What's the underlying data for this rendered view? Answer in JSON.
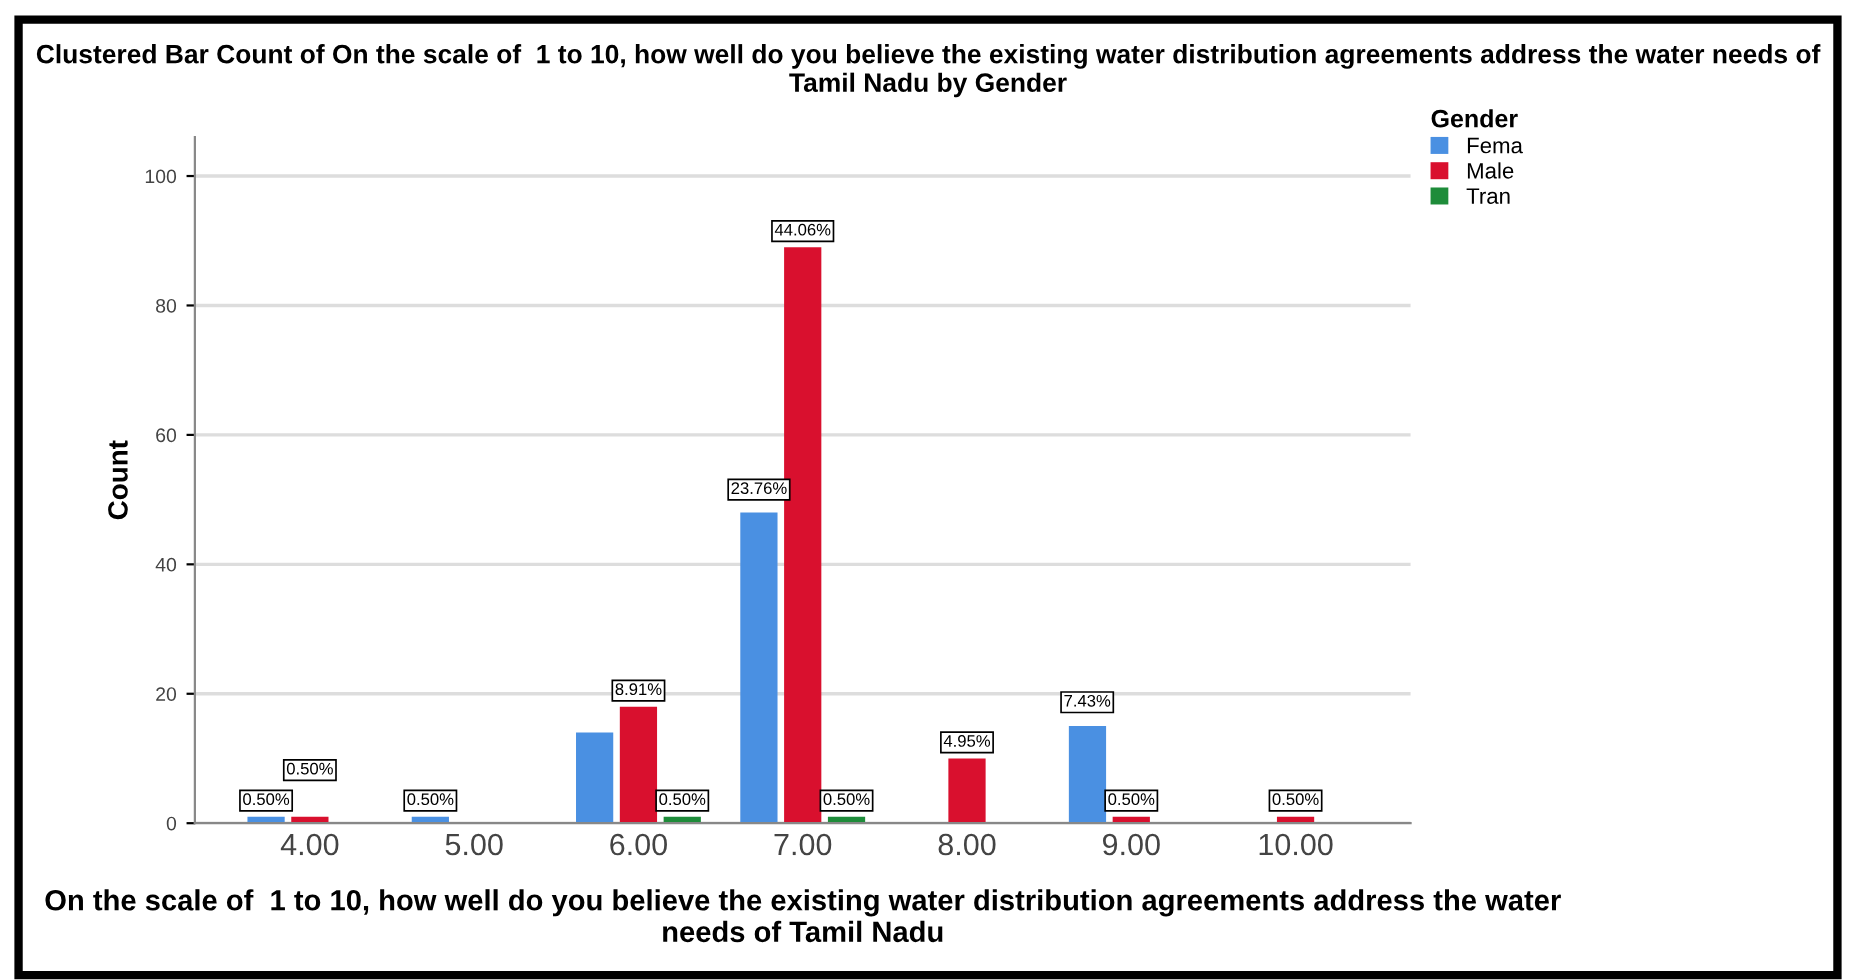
{
  "chart_data": {
    "type": "bar",
    "title": "Clustered Bar Count of On the scale of  1 to 10, how well do you believe the existing water distribution agreements address the water needs of Tamil Nadu by Gender",
    "xlabel": "On the scale of  1 to 10, how well do you believe the existing water distribution agreements address the water needs of Tamil Nadu",
    "ylabel": "Count",
    "legend_title": "Gender",
    "categories": [
      "4.00",
      "5.00",
      "6.00",
      "7.00",
      "8.00",
      "9.00",
      "10.00"
    ],
    "series": [
      {
        "name": "Fema",
        "color": "#4a90e2",
        "values": [
          1,
          1,
          14,
          48,
          0,
          15,
          0
        ]
      },
      {
        "name": "Male",
        "color": "#d9102e",
        "values": [
          1,
          0,
          18,
          89,
          10,
          1,
          1
        ]
      },
      {
        "name": "Tran",
        "color": "#1e8c3a",
        "values": [
          0,
          0,
          1,
          1,
          0,
          0,
          0
        ]
      }
    ],
    "annotations": [
      {
        "text": "0.50%",
        "x": "4.00",
        "y": 1
      },
      {
        "text": "0.50%",
        "x": "4.00",
        "y": 1
      },
      {
        "text": "0.50%",
        "x": "5.00",
        "y": 1
      },
      {
        "text": "8.91%",
        "x": "6.00",
        "y": 18
      },
      {
        "text": "0.50%",
        "x": "6.00",
        "y": 1
      },
      "23.76%",
      {
        "text": "44.06%",
        "x": "7.00",
        "y": 89
      },
      {
        "text": "0.50%",
        "x": "7.00",
        "y": 1
      },
      {
        "text": "4.95%",
        "x": "8.00",
        "y": 10
      },
      "7.43%",
      {
        "text": "0.50%",
        "x": "9.00",
        "y": 1
      },
      {
        "text": "0.50%",
        "x": "10.00",
        "y": 1
      }
    ],
    "ylim": [
      0,
      106
    ],
    "yticks": [
      0,
      20,
      40,
      60,
      80,
      100
    ],
    "grid": "y",
    "legend": "top right"
  }
}
